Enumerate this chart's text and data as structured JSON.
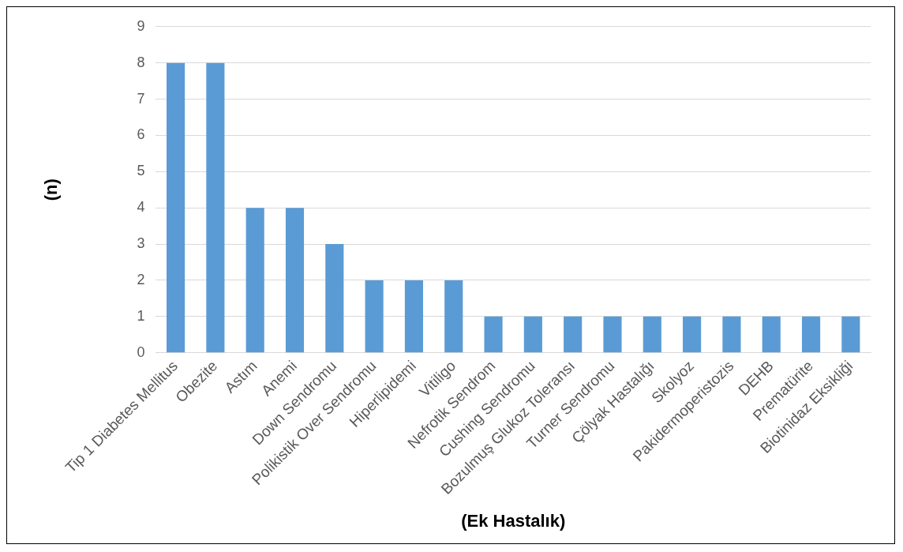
{
  "chart_data": {
    "type": "bar",
    "xlabel": "(Ek Hastalık)",
    "ylabel": "(n)",
    "categories": [
      "Tip 1 Diabetes Mellitus",
      "Obezite",
      "Astım",
      "Anemi",
      "Down Sendromu",
      "Polikistik Over Sendromu",
      "Hiperlipidemi",
      "Vitiligo",
      "Nefrotik Sendrom",
      "Cushing Sendromu",
      "Bozulmuş Glukoz Toleransı",
      "Turner Sendromu",
      "Çölyak Hastalığı",
      "Skolyoz",
      "Pakidermoperistozis",
      "DEHB",
      "Prematürite",
      "Biotinidaz Eksikliği"
    ],
    "values": [
      8,
      8,
      4,
      4,
      3,
      2,
      2,
      2,
      1,
      1,
      1,
      1,
      1,
      1,
      1,
      1,
      1,
      1
    ],
    "color": "#5b9bd5",
    "ylim": [
      0,
      9
    ],
    "yticks": [
      0,
      1,
      2,
      3,
      4,
      5,
      6,
      7,
      8,
      9
    ],
    "grid": "y",
    "legend": false
  }
}
